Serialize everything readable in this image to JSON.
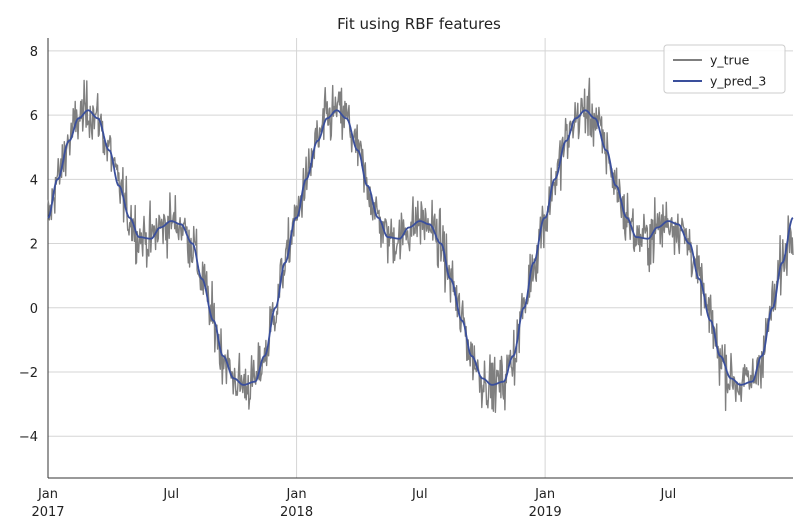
{
  "chart_data": {
    "type": "line",
    "title": "Fit using RBF features",
    "xlabel": "",
    "ylabel": "",
    "x_range": [
      "2017-01-01",
      "2019-12-31"
    ],
    "ylim": [
      -5.3,
      8.4
    ],
    "y_ticks": [
      {
        "value": -4,
        "label": "−4"
      },
      {
        "value": -2,
        "label": "−2"
      },
      {
        "value": 0,
        "label": "0"
      },
      {
        "value": 2,
        "label": "2"
      },
      {
        "value": 4,
        "label": "4"
      },
      {
        "value": 6,
        "label": "6"
      },
      {
        "value": 8,
        "label": "8"
      }
    ],
    "x_ticks": [
      {
        "date": "2017-01-01",
        "line1": "Jan",
        "line2": "2017",
        "major": true
      },
      {
        "date": "2017-07-01",
        "line1": "Jul",
        "line2": "",
        "major": false
      },
      {
        "date": "2018-01-01",
        "line1": "Jan",
        "line2": "2018",
        "major": true
      },
      {
        "date": "2018-07-01",
        "line1": "Jul",
        "line2": "",
        "major": false
      },
      {
        "date": "2019-01-01",
        "line1": "Jan",
        "line2": "2019",
        "major": true
      },
      {
        "date": "2019-07-01",
        "line1": "Jul",
        "line2": "",
        "major": false
      }
    ],
    "grid": true,
    "legend_position": "top-right",
    "series": [
      {
        "name": "y_true",
        "color": "#7f7f7f",
        "kind": "noisy daily observations around y_pred_3"
      },
      {
        "name": "y_pred_3",
        "color": "#3a4f9c",
        "one_year_profile": [
          [
            "01-01",
            2.8
          ],
          [
            "01-15",
            4.0
          ],
          [
            "02-01",
            5.2
          ],
          [
            "02-15",
            5.9
          ],
          [
            "03-01",
            6.15
          ],
          [
            "03-15",
            5.9
          ],
          [
            "04-01",
            4.9
          ],
          [
            "04-15",
            3.8
          ],
          [
            "05-01",
            2.8
          ],
          [
            "05-15",
            2.2
          ],
          [
            "06-01",
            2.15
          ],
          [
            "06-15",
            2.5
          ],
          [
            "07-01",
            2.7
          ],
          [
            "07-15",
            2.6
          ],
          [
            "08-01",
            2.0
          ],
          [
            "08-15",
            0.9
          ],
          [
            "09-01",
            -0.4
          ],
          [
            "09-15",
            -1.5
          ],
          [
            "10-01",
            -2.2
          ],
          [
            "10-15",
            -2.4
          ],
          [
            "11-01",
            -2.3
          ],
          [
            "11-15",
            -1.5
          ],
          [
            "12-01",
            0.0
          ],
          [
            "12-15",
            1.4
          ],
          [
            "12-31",
            2.8
          ]
        ]
      }
    ]
  }
}
